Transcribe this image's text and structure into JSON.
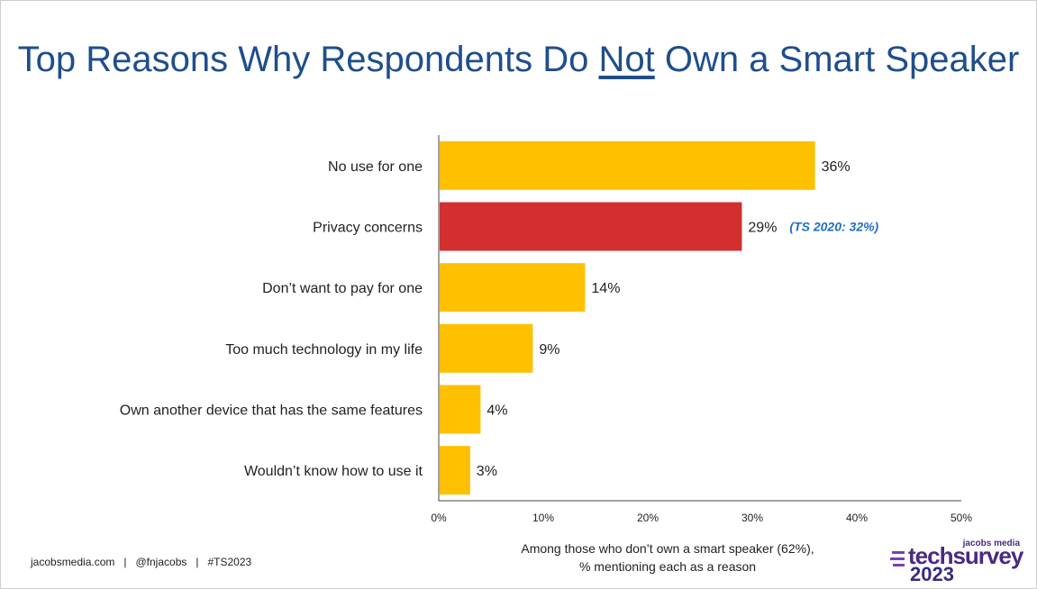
{
  "slide": {
    "title_pre": "Top Reasons Why Respondents Do ",
    "title_emph": "Not",
    "title_post": " Own a Smart Speaker",
    "footer_links": "jacobsmedia.com   |   @fnjacobs   |   #TS2023",
    "caption_line1": "Among those who don’t own a smart speaker (62%),",
    "caption_line2": "% mentioning each as a reason",
    "logo_top": "jacobs media",
    "logo_main": "techsurvey",
    "logo_year": "2023"
  },
  "colors": {
    "title": "#1f4e8c",
    "bar_default": "#ffc000",
    "bar_highlight": "#d32f2f",
    "note": "#1f6fc1"
  },
  "chart_data": {
    "type": "bar",
    "orientation": "horizontal",
    "categories": [
      "No use for one",
      "Privacy concerns",
      "Don’t want to pay for one",
      "Too much technology in my life",
      "Own another device that has the same features",
      "Wouldn’t know how to use it"
    ],
    "values": [
      36,
      29,
      14,
      9,
      4,
      3
    ],
    "value_labels": [
      "36%",
      "29%",
      "14%",
      "9%",
      "4%",
      "3%"
    ],
    "highlight_index": 1,
    "annotation": {
      "category_index": 1,
      "text": "(TS 2020: 32%)"
    },
    "xlim": [
      0,
      50
    ],
    "xticks": [
      "0%",
      "10%",
      "20%",
      "30%",
      "40%",
      "50%"
    ],
    "grid": false
  }
}
